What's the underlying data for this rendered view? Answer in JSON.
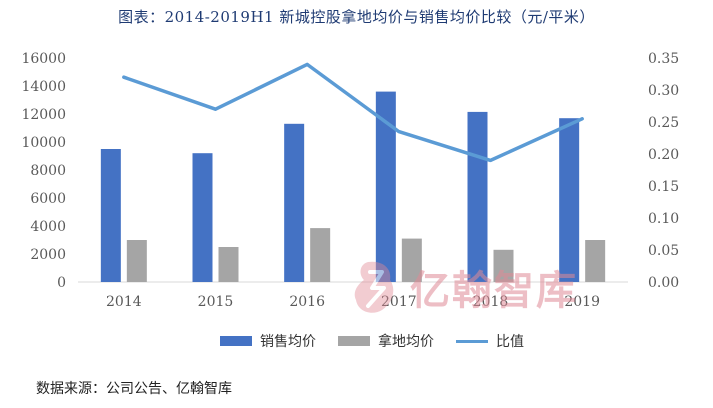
{
  "title": "图表：2014-2019H1 新城控股拿地均价与销售均价比较（元/平米）",
  "source": "数据来源：公司公告、亿翰智库",
  "watermark": "亿翰智库",
  "colors": {
    "sales": "#4472c4",
    "land": "#a5a5a5",
    "ratio": "#5b9bd5",
    "grid": "#d9d9d9",
    "axis_text": "#595959",
    "title": "#1f3b73",
    "watermark": "#e08a96"
  },
  "chart_data": {
    "type": "bar",
    "categories": [
      "2014",
      "2015",
      "2016",
      "2017",
      "2018",
      "2019"
    ],
    "series": [
      {
        "name": "销售均价",
        "type": "bar",
        "axis": "left",
        "values": [
          9500,
          9200,
          11300,
          13600,
          12150,
          11700
        ]
      },
      {
        "name": "拿地均价",
        "type": "bar",
        "axis": "left",
        "values": [
          3000,
          2500,
          3850,
          3100,
          2300,
          3000
        ]
      },
      {
        "name": "比值",
        "type": "line",
        "axis": "right",
        "values": [
          0.32,
          0.27,
          0.34,
          0.235,
          0.19,
          0.255
        ]
      }
    ],
    "y_left": {
      "min": 0,
      "max": 16000,
      "ticks": [
        "0",
        "2000",
        "4000",
        "6000",
        "8000",
        "10000",
        "12000",
        "14000",
        "16000"
      ]
    },
    "y_right": {
      "min": 0,
      "max": 0.35,
      "ticks": [
        "0.00",
        "0.05",
        "0.10",
        "0.15",
        "0.20",
        "0.25",
        "0.30",
        "0.35"
      ]
    },
    "grid": false,
    "legend_position": "bottom"
  }
}
